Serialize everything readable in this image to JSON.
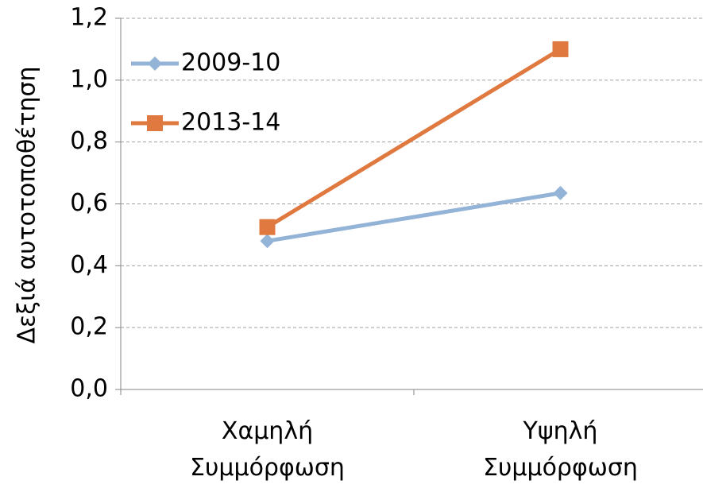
{
  "chart_data": {
    "type": "line",
    "y_label": "Δεξιά αυτοτοποθέτηση",
    "categories": [
      "Χαμηλή Συμμόρφωση",
      "Υψηλή Συμμόρφωση"
    ],
    "series": [
      {
        "name": "2009-10",
        "color": "#93b3d7",
        "marker": "diamond",
        "values": [
          0.48,
          0.635
        ]
      },
      {
        "name": "2013-14",
        "color": "#e0793f",
        "marker": "square",
        "values": [
          0.525,
          1.1
        ]
      }
    ],
    "ylim": [
      0,
      1.2
    ],
    "yticks": [
      {
        "value": 0,
        "label": "0,0"
      },
      {
        "value": 0.2,
        "label": "0,2"
      },
      {
        "value": 0.4,
        "label": "0,4"
      },
      {
        "value": 0.6,
        "label": "0,6"
      },
      {
        "value": 0.8,
        "label": "0,8"
      },
      {
        "value": 1.0,
        "label": "1,0"
      },
      {
        "value": 1.2,
        "label": "1,2"
      }
    ],
    "grid": true,
    "legend": "upper-left"
  }
}
